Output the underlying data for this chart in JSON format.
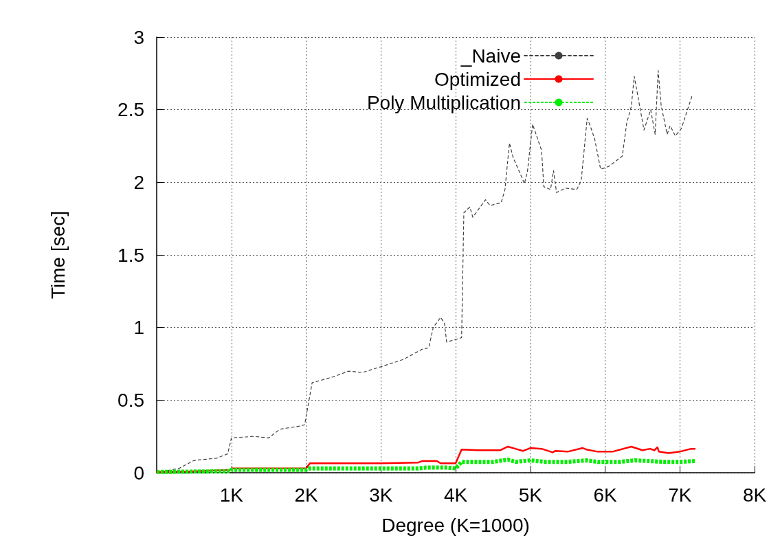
{
  "chart_data": {
    "type": "line",
    "xlabel": "Degree (K=1000)",
    "ylabel": "Time [sec]",
    "xlim": [
      0,
      8
    ],
    "xticks": [
      {
        "value": 1,
        "label": "1K"
      },
      {
        "value": 2,
        "label": "2K"
      },
      {
        "value": 3,
        "label": "3K"
      },
      {
        "value": 4,
        "label": "4K"
      },
      {
        "value": 5,
        "label": "5K"
      },
      {
        "value": 6,
        "label": "6K"
      },
      {
        "value": 7,
        "label": "7K"
      },
      {
        "value": 8,
        "label": "8K"
      }
    ],
    "ylim": [
      0,
      3
    ],
    "yticks": [
      0,
      0.5,
      1,
      1.5,
      2,
      2.5,
      3
    ],
    "grid": true,
    "legend": "top",
    "marker": "none",
    "series": [
      {
        "name": "_Naive",
        "color": "#404040",
        "line_style": "dashed",
        "x": [
          0,
          0.3,
          0.5,
          0.8,
          0.95,
          1.0,
          1.3,
          1.5,
          1.65,
          1.9,
          1.98,
          2.08,
          2.36,
          2.57,
          2.75,
          3.0,
          3.3,
          3.55,
          3.64,
          3.7,
          3.8,
          3.85,
          3.88,
          4.08,
          4.11,
          4.19,
          4.23,
          4.4,
          4.46,
          4.61,
          4.66,
          4.72,
          4.77,
          4.89,
          4.92,
          4.96,
          5.03,
          5.07,
          5.15,
          5.18,
          5.27,
          5.31,
          5.35,
          5.47,
          5.62,
          5.68,
          5.76,
          5.8,
          5.86,
          5.94,
          6.05,
          6.23,
          6.29,
          6.35,
          6.39,
          6.44,
          6.52,
          6.61,
          6.67,
          6.71,
          6.75,
          6.83,
          6.87,
          6.94,
          7.02,
          7.16
        ],
        "values": [
          0,
          0.03,
          0.085,
          0.1,
          0.13,
          0.24,
          0.25,
          0.24,
          0.3,
          0.32,
          0.33,
          0.62,
          0.66,
          0.7,
          0.69,
          0.73,
          0.78,
          0.85,
          0.86,
          1.0,
          1.07,
          1.03,
          0.9,
          0.93,
          1.79,
          1.83,
          1.76,
          1.88,
          1.84,
          1.86,
          1.95,
          2.27,
          2.17,
          2.03,
          1.99,
          2.07,
          2.4,
          2.34,
          2.22,
          1.97,
          1.95,
          2.08,
          1.93,
          1.96,
          1.95,
          2.01,
          2.44,
          2.39,
          2.3,
          2.09,
          2.11,
          2.18,
          2.41,
          2.52,
          2.73,
          2.59,
          2.36,
          2.5,
          2.33,
          2.77,
          2.53,
          2.33,
          2.39,
          2.32,
          2.37,
          2.59
        ]
      },
      {
        "name": "Optimized",
        "color": "#ff0000",
        "line_style": "solid",
        "x": [
          0,
          0.5,
          0.98,
          1.0,
          1.5,
          2.0,
          2.05,
          2.5,
          3.0,
          3.5,
          3.55,
          3.75,
          3.8,
          4.0,
          4.08,
          4.3,
          4.6,
          4.7,
          4.8,
          4.9,
          5.0,
          5.15,
          5.3,
          5.33,
          5.5,
          5.7,
          5.75,
          5.9,
          6.1,
          6.35,
          6.5,
          6.6,
          6.66,
          6.7,
          6.72,
          6.85,
          7.0,
          7.15,
          7.2
        ],
        "values": [
          0.005,
          0.01,
          0.02,
          0.03,
          0.03,
          0.03,
          0.065,
          0.065,
          0.065,
          0.07,
          0.08,
          0.08,
          0.065,
          0.065,
          0.16,
          0.155,
          0.155,
          0.18,
          0.165,
          0.15,
          0.17,
          0.165,
          0.14,
          0.15,
          0.145,
          0.17,
          0.16,
          0.145,
          0.145,
          0.18,
          0.155,
          0.165,
          0.155,
          0.175,
          0.145,
          0.135,
          0.145,
          0.165,
          0.165
        ]
      },
      {
        "name": "Poly Multiplication",
        "color": "#00ee00",
        "line_style": "dotted",
        "x": [
          0,
          0.5,
          0.98,
          1.0,
          1.5,
          2.0,
          2.05,
          2.5,
          3.0,
          3.5,
          3.6,
          3.9,
          4.0,
          4.08,
          4.5,
          4.7,
          4.8,
          5.0,
          5.2,
          5.5,
          5.75,
          5.9,
          6.2,
          6.4,
          6.6,
          6.8,
          7.0,
          7.2
        ],
        "values": [
          0.005,
          0.008,
          0.01,
          0.02,
          0.02,
          0.02,
          0.03,
          0.03,
          0.03,
          0.03,
          0.035,
          0.035,
          0.03,
          0.075,
          0.075,
          0.09,
          0.075,
          0.085,
          0.075,
          0.075,
          0.085,
          0.075,
          0.075,
          0.085,
          0.08,
          0.075,
          0.075,
          0.08
        ]
      }
    ]
  }
}
